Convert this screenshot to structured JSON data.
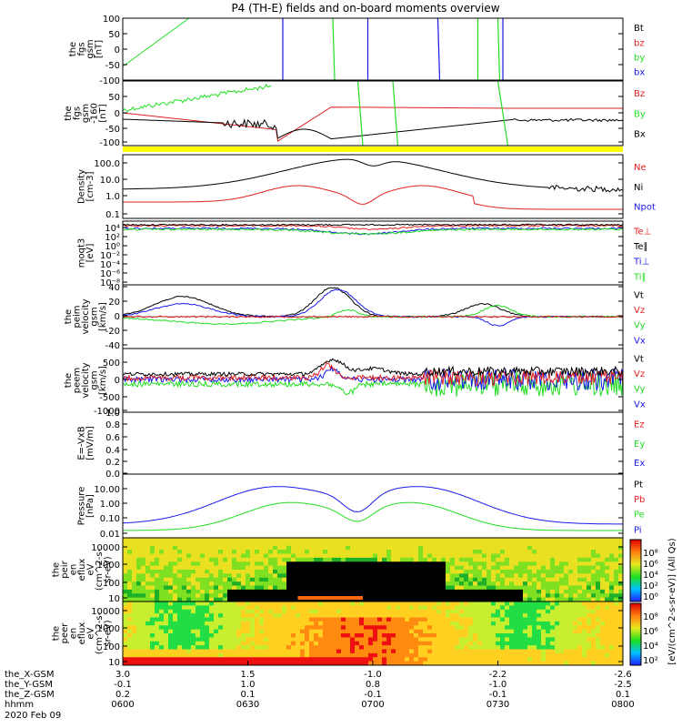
{
  "title": "P4 (TH-E) fields and on-board moments overview",
  "colors": {
    "black": "#000000",
    "red": "#e02020",
    "green": "#22dd22",
    "blue": "#1a1aee",
    "yellow": "#ffff00"
  },
  "chart_data": [
    {
      "type": "line",
      "ylabel_lines": [
        "the",
        "fgs",
        "gsm",
        "[nT]"
      ],
      "ylim": [
        -100,
        100
      ],
      "yticks": [
        "100",
        "50",
        "0",
        "-50",
        "-100"
      ],
      "legend": [
        {
          "label": "Bt",
          "color": "#000000"
        },
        {
          "label": "bz",
          "color": "#e02020"
        },
        {
          "label": "by",
          "color": "#22dd22"
        },
        {
          "label": "bx",
          "color": "#1a1aee"
        }
      ]
    },
    {
      "type": "line",
      "ylabel_lines": [
        "the",
        "fgs",
        "gsm",
        "-160",
        "[nT]"
      ],
      "ylim": [
        -125,
        95
      ],
      "yticks": [
        "50",
        "0",
        "-50",
        "-100"
      ],
      "legend": [
        {
          "label": "Bz",
          "color": "#e02020"
        },
        {
          "label": "By",
          "color": "#22dd22"
        },
        {
          "label": "Bx",
          "color": "#000000"
        }
      ]
    },
    {
      "type": "line",
      "ylabel_lines": [
        "Density",
        "[cm-3]"
      ],
      "yscale": "log",
      "yticks": [
        "100.0",
        "10.0",
        "1.0",
        "0.1"
      ],
      "legend": [
        {
          "label": "Ne",
          "color": "#e02020"
        },
        {
          "label": "Ni",
          "color": "#000000"
        },
        {
          "label": "Npot",
          "color": "#1a1aee"
        }
      ]
    },
    {
      "type": "line",
      "ylabel_lines": [
        "moqt3",
        "[eV]"
      ],
      "yscale": "log",
      "yticks": [
        "10⁴",
        "10²",
        "10⁰",
        "10⁻²",
        "10⁻⁴",
        "10⁻⁶",
        "10⁻⁸"
      ],
      "legend": [
        {
          "label": "Te⊥",
          "color": "#e02020"
        },
        {
          "label": "Te∥",
          "color": "#000000"
        },
        {
          "label": "Ti⊥",
          "color": "#1a1aee"
        },
        {
          "label": "Ti∥",
          "color": "#22dd22"
        }
      ]
    },
    {
      "type": "line",
      "ylabel_lines": [
        "the",
        "peim",
        "velocity",
        "gsm",
        "[km/s]"
      ],
      "ylim": [
        -40,
        40
      ],
      "yticks": [
        "40",
        "20",
        "0",
        "-20",
        "-40"
      ],
      "legend": [
        {
          "label": "Vt",
          "color": "#000000"
        },
        {
          "label": "Vz",
          "color": "#e02020"
        },
        {
          "label": "Vy",
          "color": "#22dd22"
        },
        {
          "label": "Vx",
          "color": "#1a1aee"
        }
      ]
    },
    {
      "type": "line",
      "ylabel_lines": [
        "the",
        "peem",
        "velocity",
        "gsm",
        "[km/s]"
      ],
      "ylim": [
        -1000,
        1000
      ],
      "yticks": [
        "500",
        "0",
        "-500",
        "-1000"
      ],
      "legend": [
        {
          "label": "Vt",
          "color": "#000000"
        },
        {
          "label": "Vz",
          "color": "#e02020"
        },
        {
          "label": "Vy",
          "color": "#22dd22"
        },
        {
          "label": "Vx",
          "color": "#1a1aee"
        }
      ]
    },
    {
      "type": "line",
      "ylabel_lines": [
        "E=-VxB",
        "[mV/m]"
      ],
      "ylim": [
        0,
        1
      ],
      "yticks": [
        "1.0",
        "0.8",
        "0.6",
        "0.4",
        "0.2",
        "0.0"
      ],
      "legend": [
        {
          "label": "Ez",
          "color": "#e02020"
        },
        {
          "label": "Ey",
          "color": "#22dd22"
        },
        {
          "label": "Ex",
          "color": "#1a1aee"
        }
      ]
    },
    {
      "type": "line",
      "ylabel_lines": [
        "Pressure",
        "[nPa]"
      ],
      "yscale": "log",
      "yticks": [
        "10.00",
        "1.00",
        "0.10",
        "0.01"
      ],
      "legend": [
        {
          "label": "Pt",
          "color": "#000000"
        },
        {
          "label": "Pb",
          "color": "#e02020"
        },
        {
          "label": "Pe",
          "color": "#22dd22"
        },
        {
          "label": "Pi",
          "color": "#1a1aee"
        }
      ]
    },
    {
      "type": "heatmap",
      "ylabel_lines": [
        "the",
        "peir",
        "en",
        "eflux",
        "eV",
        "(cm^2-s-",
        "sr-eV)"
      ],
      "yscale": "log",
      "yticks": [
        "10000",
        "1000",
        "100",
        "10"
      ]
    },
    {
      "type": "heatmap",
      "ylabel_lines": [
        "the",
        "peer",
        "en",
        "eflux",
        "eV",
        "(cm^2-s-",
        "sr-eV)"
      ],
      "yscale": "log",
      "yticks": [
        "10000",
        "1000",
        "100",
        "10"
      ]
    }
  ],
  "colorbar": {
    "label": "[eV/(cm^2-s-sr-eV)]  (All Qs)",
    "ticks": [
      "10⁸",
      "10⁶",
      "10⁴",
      "10²",
      "10⁰"
    ],
    "ticks2": [
      "10⁸",
      "10⁶",
      "10⁴",
      "10²"
    ]
  },
  "x_axis": {
    "ticks": [
      {
        "hhmm": "0600",
        "x": "3.0",
        "y": "-0.1",
        "z": "0.2"
      },
      {
        "hhmm": "0630",
        "x": "1.5",
        "y": "1.0",
        "z": "0.1"
      },
      {
        "hhmm": "0700",
        "x": "-1.0",
        "y": "0.8",
        "z": "-0.1"
      },
      {
        "hhmm": "0730",
        "x": "-2.2",
        "y": "-1.0",
        "z": "-0.1"
      },
      {
        "hhmm": "0800",
        "x": "-2.6",
        "y": "-2.5",
        "z": "0.1"
      }
    ],
    "row_labels": [
      "the_X-GSM",
      "the_Y-GSM",
      "the_Z-GSM",
      "hhmm"
    ],
    "date": "2020 Feb 09"
  }
}
